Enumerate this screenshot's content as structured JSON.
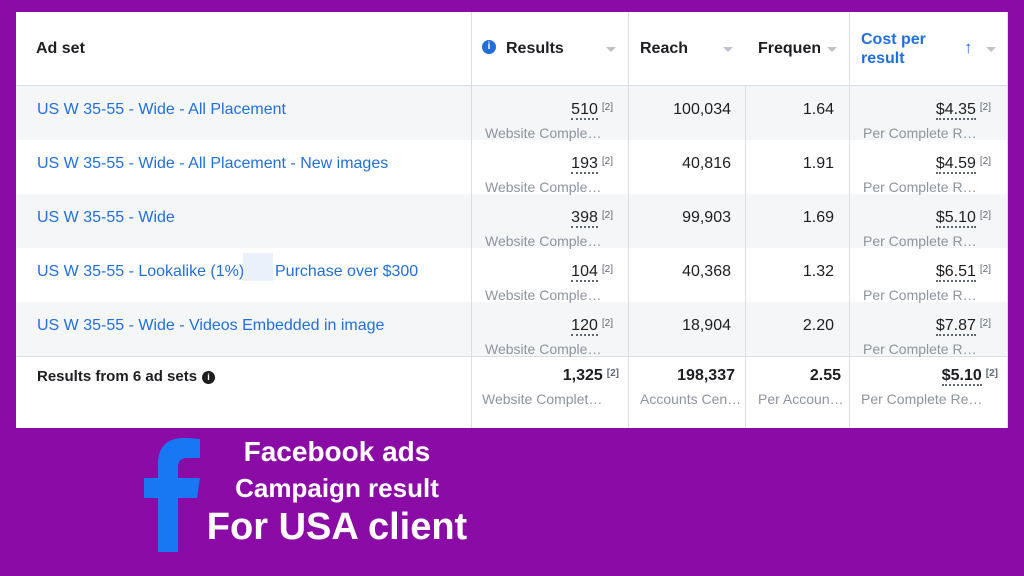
{
  "table": {
    "columns": [
      "Ad set",
      "Results",
      "Reach",
      "Frequen",
      "Cost per result"
    ],
    "rows": [
      {
        "ad_set": "US W 35-55 - Wide - All Placement",
        "results": {
          "value": "510",
          "note": "[2]",
          "sub": "Website Comple…"
        },
        "reach": "100,034",
        "frequency": "1.64",
        "cost": {
          "value": "$4.35",
          "note": "[2]",
          "sub": "Per Complete R…"
        }
      },
      {
        "ad_set": "US W 35-55 - Wide - All Placement - New images",
        "results": {
          "value": "193",
          "note": "[2]",
          "sub": "Website Comple…"
        },
        "reach": "40,816",
        "frequency": "1.91",
        "cost": {
          "value": "$4.59",
          "note": "[2]",
          "sub": "Per Complete R…"
        }
      },
      {
        "ad_set": "US W 35-55 - Wide",
        "results": {
          "value": "398",
          "note": "[2]",
          "sub": "Website Comple…"
        },
        "reach": "99,903",
        "frequency": "1.69",
        "cost": {
          "value": "$5.10",
          "note": "[2]",
          "sub": "Per Complete R…"
        }
      },
      {
        "ad_set": [
          "US W 35-55 - Lookalike (1%)",
          "Purchase over $300"
        ],
        "results": {
          "value": "104",
          "note": "[2]",
          "sub": "Website Comple…"
        },
        "reach": "40,368",
        "frequency": "1.32",
        "cost": {
          "value": "$6.51",
          "note": "[2]",
          "sub": "Per Complete R…"
        }
      },
      {
        "ad_set": "US W 35-55 - Wide - Videos Embedded in image",
        "results": {
          "value": "120",
          "note": "[2]",
          "sub": "Website Comple…"
        },
        "reach": "18,904",
        "frequency": "2.20",
        "cost": {
          "value": "$7.87",
          "note": "[2]",
          "sub": "Per Complete R…"
        }
      }
    ],
    "total": {
      "label": "Results from 6 ad sets",
      "results": {
        "value": "1,325",
        "note": "[2]",
        "sub": "Website Complet…"
      },
      "reach": {
        "value": "198,337",
        "sub": "Accounts Cen…"
      },
      "frequency": {
        "value": "2.55",
        "sub": "Per Accoun…"
      },
      "cost": {
        "value": "$5.10",
        "note": "[2]",
        "sub": "Per Complete Re…"
      }
    }
  },
  "caption": {
    "line1": "Facebook ads",
    "line2": "Campaign result",
    "line3": "For USA  client"
  }
}
